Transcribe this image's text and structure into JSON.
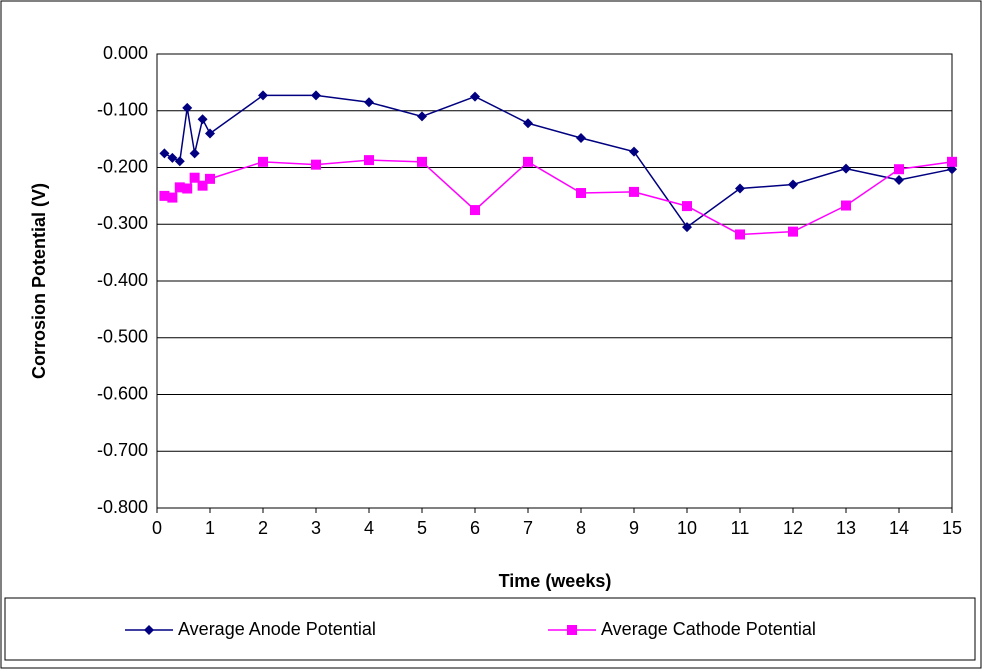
{
  "chart_data": {
    "type": "line",
    "x_label": "Time (weeks)",
    "y_label": "Corrosion Potential (V)",
    "xlim": [
      0,
      15
    ],
    "xticks": [
      0,
      1,
      2,
      3,
      4,
      5,
      6,
      7,
      8,
      9,
      10,
      11,
      12,
      13,
      14,
      15
    ],
    "ylim": [
      -0.8,
      0
    ],
    "yticks": [
      {
        "value": -0.8,
        "label": "-0.800"
      },
      {
        "value": -0.7,
        "label": "-0.700"
      },
      {
        "value": -0.6,
        "label": "-0.600"
      },
      {
        "value": -0.5,
        "label": "-0.500"
      },
      {
        "value": -0.4,
        "label": "-0.400"
      },
      {
        "value": -0.3,
        "label": "-0.300"
      },
      {
        "value": -0.2,
        "label": "-0.200"
      },
      {
        "value": -0.1,
        "label": "-0.100"
      },
      {
        "value": 0,
        "label": "0.000"
      }
    ],
    "grid": true,
    "legend": "bottom",
    "x": [
      0.14,
      0.29,
      0.43,
      0.57,
      0.71,
      0.86,
      1,
      2,
      3,
      4,
      5,
      6,
      7,
      8,
      9,
      10,
      11,
      12,
      13,
      14,
      15
    ],
    "series": [
      {
        "name": "Average Anode Potential",
        "color": "#000080",
        "marker": "diamond",
        "values": [
          -0.175,
          -0.183,
          -0.189,
          -0.095,
          -0.175,
          -0.115,
          -0.14,
          -0.073,
          -0.073,
          -0.085,
          -0.11,
          -0.075,
          -0.122,
          -0.148,
          -0.172,
          -0.305,
          -0.237,
          -0.23,
          -0.202,
          -0.222,
          -0.203
        ]
      },
      {
        "name": "Average Cathode Potential",
        "color": "#ff00ff",
        "marker": "square",
        "values": [
          -0.25,
          -0.253,
          -0.235,
          -0.237,
          -0.218,
          -0.232,
          -0.22,
          -0.19,
          -0.195,
          -0.187,
          -0.19,
          -0.275,
          -0.19,
          -0.245,
          -0.243,
          -0.268,
          -0.318,
          -0.313,
          -0.267,
          -0.203,
          -0.19
        ]
      }
    ]
  }
}
